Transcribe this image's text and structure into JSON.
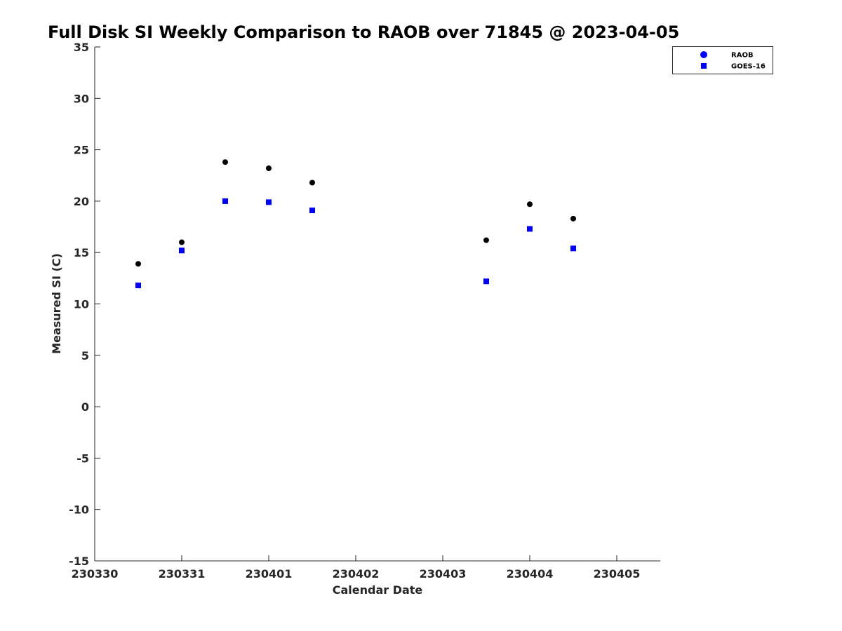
{
  "chart_data": {
    "type": "scatter",
    "title": "Full Disk SI Weekly Comparison to RAOB over 71845 @ 2023-04-05",
    "xlabel": "Calendar Date",
    "ylabel": "Measured SI (C)",
    "xlim": [
      "2023-03-30T00:00",
      "2023-04-05T12:00"
    ],
    "ylim": [
      -15,
      35
    ],
    "x_ticks": [
      {
        "label": "230330",
        "value": "2023-03-30T00:00"
      },
      {
        "label": "230331",
        "value": "2023-03-31T00:00"
      },
      {
        "label": "230401",
        "value": "2023-04-01T00:00"
      },
      {
        "label": "230402",
        "value": "2023-04-02T00:00"
      },
      {
        "label": "230403",
        "value": "2023-04-03T00:00"
      },
      {
        "label": "230404",
        "value": "2023-04-04T00:00"
      },
      {
        "label": "230405",
        "value": "2023-04-05T00:00"
      }
    ],
    "y_ticks": [
      35,
      30,
      25,
      20,
      15,
      10,
      5,
      0,
      -5,
      -10,
      -15
    ],
    "grid": false,
    "legend_position": "top-right",
    "series": [
      {
        "name": "RAOB",
        "marker": "circle",
        "color": "#000000",
        "legend_color": "#0000ff",
        "points": [
          {
            "x": "2023-03-30T12:00",
            "y": 13.9
          },
          {
            "x": "2023-03-31T00:00",
            "y": 16.0
          },
          {
            "x": "2023-03-31T12:00",
            "y": 23.8
          },
          {
            "x": "2023-04-01T00:00",
            "y": 23.2
          },
          {
            "x": "2023-04-01T12:00",
            "y": 21.8
          },
          {
            "x": "2023-04-03T12:00",
            "y": 16.2
          },
          {
            "x": "2023-04-04T00:00",
            "y": 19.7
          },
          {
            "x": "2023-04-04T12:00",
            "y": 18.3
          }
        ]
      },
      {
        "name": "GOES-16",
        "marker": "square",
        "color": "#0000ff",
        "points": [
          {
            "x": "2023-03-30T12:00",
            "y": 11.8
          },
          {
            "x": "2023-03-31T00:00",
            "y": 15.2
          },
          {
            "x": "2023-03-31T12:00",
            "y": 20.0
          },
          {
            "x": "2023-04-01T00:00",
            "y": 19.9
          },
          {
            "x": "2023-04-01T12:00",
            "y": 19.1
          },
          {
            "x": "2023-04-03T12:00",
            "y": 12.2
          },
          {
            "x": "2023-04-04T00:00",
            "y": 17.3
          },
          {
            "x": "2023-04-04T12:00",
            "y": 15.4
          }
        ]
      }
    ]
  }
}
